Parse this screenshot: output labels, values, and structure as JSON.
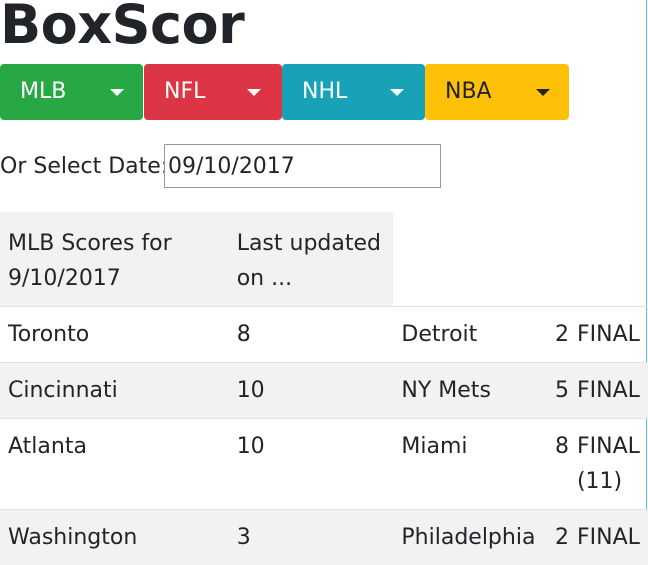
{
  "app": {
    "title": "BoxScor"
  },
  "sports": [
    {
      "label": "MLB",
      "color": "#28a745",
      "text_color": "#ffffff"
    },
    {
      "label": "NFL",
      "color": "#dc3545",
      "text_color": "#ffffff"
    },
    {
      "label": "NHL",
      "color": "#17a2b8",
      "text_color": "#ffffff"
    },
    {
      "label": "NBA",
      "color": "#ffc107",
      "text_color": "#212529"
    }
  ],
  "date_picker": {
    "label": "Or Select Date:",
    "value": "09/10/2017"
  },
  "scores": {
    "header_title": "MLB Scores for 9/10/2017",
    "header_updated": "Last updated on ...",
    "rows": [
      {
        "home": "Toronto",
        "home_score": "8",
        "away": "Detroit",
        "away_score": "2",
        "status": "FINAL"
      },
      {
        "home": "Cincinnati",
        "home_score": "10",
        "away": "NY Mets",
        "away_score": "5",
        "status": "FINAL"
      },
      {
        "home": "Atlanta",
        "home_score": "10",
        "away": "Miami",
        "away_score": "8",
        "status": "FINAL (11)"
      },
      {
        "home": "Washington",
        "home_score": "3",
        "away": "Philadelphia",
        "away_score": "2",
        "status": "FINAL"
      }
    ]
  }
}
